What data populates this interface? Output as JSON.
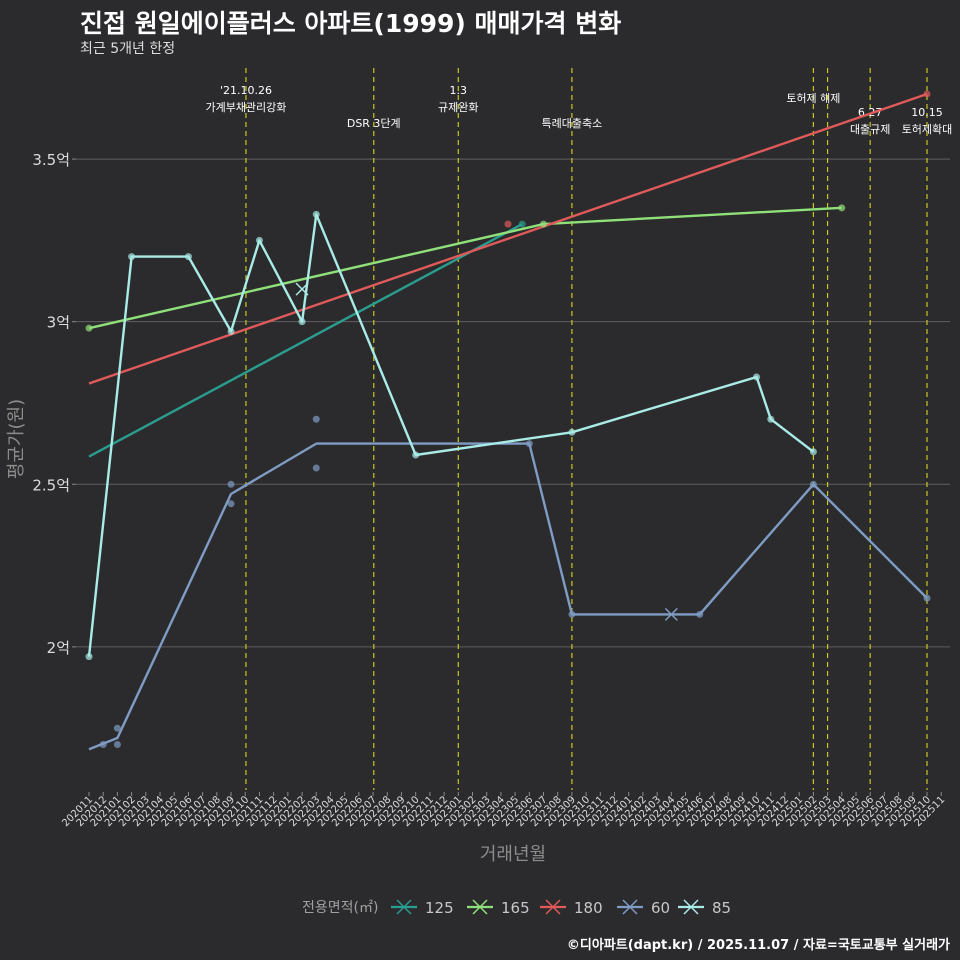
{
  "chart_data": {
    "type": "line",
    "title": "진접 원일에이플러스 아파트(1999) 매매가격 변화",
    "subtitle": "최근 5개년 한정",
    "xlabel": "거래년월",
    "ylabel": "평균가(원)",
    "legend_title": "전용면적(㎡)",
    "legend_position": "bottom",
    "credit": "©디아파트(dapt.kr) / 2025.11.07 / 자료=국토교통부 실거래가",
    "y_ticks": [
      {
        "value": 2.0,
        "label": "2억"
      },
      {
        "value": 2.5,
        "label": "2.5억"
      },
      {
        "value": 3.0,
        "label": "3억"
      },
      {
        "value": 3.5,
        "label": "3.5억"
      }
    ],
    "ylim": [
      1.56,
      3.78
    ],
    "categories": [
      "202011",
      "202012",
      "202101",
      "202102",
      "202103",
      "202104",
      "202105",
      "202106",
      "202107",
      "202108",
      "202109",
      "202110",
      "202111",
      "202112",
      "202201",
      "202202",
      "202203",
      "202204",
      "202205",
      "202206",
      "202207",
      "202208",
      "202209",
      "202210",
      "202211",
      "202212",
      "202301",
      "202302",
      "202303",
      "202304",
      "202305",
      "202306",
      "202307",
      "202308",
      "202309",
      "202310",
      "202311",
      "202312",
      "202401",
      "202402",
      "202403",
      "202404",
      "202405",
      "202406",
      "202407",
      "202408",
      "202409",
      "202410",
      "202411",
      "202412",
      "202501",
      "202502",
      "202503",
      "202504",
      "202505",
      "202506",
      "202507",
      "202508",
      "202509",
      "202510",
      "202511"
    ],
    "events": [
      {
        "x": 11.05,
        "lines": [
          "'21.10.26",
          "가계부채관리강화"
        ],
        "level": 0
      },
      {
        "x": 20.05,
        "lines": [
          "DSR 3단계"
        ],
        "level": 2
      },
      {
        "x": 26.0,
        "lines": [
          "1.3",
          "규제완화"
        ],
        "level": 0
      },
      {
        "x": 34.0,
        "lines": [
          "특례대출축소"
        ],
        "level": 2
      },
      {
        "x": 51.0,
        "lines": [
          "토허제 해제"
        ],
        "level": 1
      },
      {
        "x": 52.0,
        "lines": [],
        "level": 0
      },
      {
        "x": 55.0,
        "lines": [
          "6.27",
          "대출규제"
        ],
        "level": 3
      },
      {
        "x": 59.0,
        "lines": [
          "10.15",
          "토허제확대"
        ],
        "level": 3
      }
    ],
    "series": [
      {
        "name": "125",
        "color": "#2a9d8f",
        "trend": [
          [
            0,
            2.585
          ],
          [
            30.5,
            3.3
          ]
        ],
        "points": [
          [
            30.5,
            3.3
          ]
        ],
        "cross": []
      },
      {
        "name": "165",
        "color": "#90e07a",
        "trend": [
          [
            0,
            2.98
          ],
          [
            32,
            3.3
          ],
          [
            53,
            3.35
          ]
        ],
        "points": [
          [
            0,
            2.98
          ],
          [
            32,
            3.3
          ],
          [
            53,
            3.35
          ]
        ],
        "cross": []
      },
      {
        "name": "180",
        "color": "#e05a5a",
        "trend": [
          [
            0,
            2.81
          ],
          [
            59,
            3.7
          ]
        ],
        "points": [
          [
            29.5,
            3.3
          ],
          [
            59,
            3.7
          ]
        ],
        "cross": []
      },
      {
        "name": "60",
        "color": "#7f9cc4",
        "trend": [
          [
            0,
            1.685
          ],
          [
            2,
            1.72
          ],
          [
            10,
            2.47
          ],
          [
            16,
            2.625
          ],
          [
            31,
            2.625
          ],
          [
            34,
            2.1
          ],
          [
            43,
            2.1
          ],
          [
            51,
            2.5
          ],
          [
            59,
            2.15
          ]
        ],
        "points": [
          [
            1,
            1.7
          ],
          [
            2,
            1.75
          ],
          [
            2,
            1.7
          ],
          [
            10,
            2.5
          ],
          [
            10,
            2.44
          ],
          [
            16,
            2.7
          ],
          [
            16,
            2.55
          ],
          [
            31,
            2.625
          ],
          [
            34,
            2.1
          ],
          [
            43,
            2.1
          ],
          [
            51,
            2.5
          ],
          [
            59,
            2.15
          ]
        ],
        "cross": [
          [
            41,
            2.1
          ]
        ]
      },
      {
        "name": "85",
        "color": "#a9ebe6",
        "trend": [
          [
            0,
            1.97
          ],
          [
            3,
            3.2
          ],
          [
            7,
            3.2
          ],
          [
            10,
            2.97
          ],
          [
            12,
            3.25
          ],
          [
            15,
            3.0
          ],
          [
            16,
            3.33
          ],
          [
            23,
            2.59
          ],
          [
            34,
            2.66
          ],
          [
            47,
            2.83
          ],
          [
            48,
            2.7
          ],
          [
            51,
            2.6
          ]
        ],
        "points": [
          [
            0,
            1.97
          ],
          [
            3,
            3.2
          ],
          [
            7,
            3.2
          ],
          [
            10,
            2.97
          ],
          [
            12,
            3.25
          ],
          [
            15,
            3.0
          ],
          [
            16,
            3.33
          ],
          [
            23,
            2.59
          ],
          [
            34,
            2.66
          ],
          [
            47,
            2.83
          ],
          [
            48,
            2.7
          ],
          [
            51,
            2.6
          ]
        ],
        "cross": [
          [
            15,
            3.1
          ]
        ]
      }
    ]
  }
}
